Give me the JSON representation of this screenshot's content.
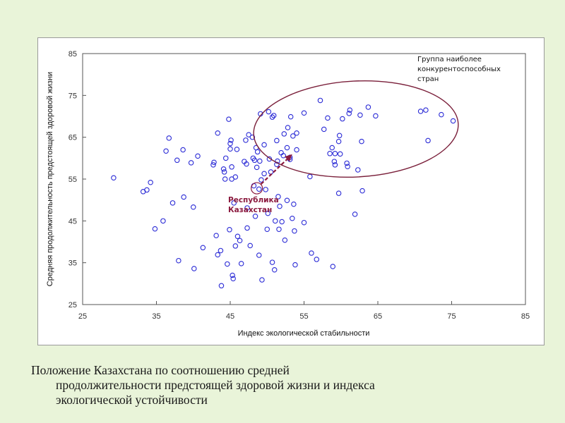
{
  "caption": {
    "line1": "Положение Казахстана по соотношению средней",
    "line2": "продолжительности предстоящей здоровой жизни и индекса",
    "line3": "экологической устойчивости"
  },
  "colors": {
    "background": "#e9f4d9",
    "point": "#2b2bd6",
    "ellipse": "#7a1f3a",
    "highlight": "#8b1a3f"
  },
  "chart_data": {
    "type": "scatter",
    "title": "",
    "xlabel": "Индекс экологической стабильности",
    "ylabel": "Средняя продолжительность предстоящей здоровой жизни",
    "xlim": [
      25,
      85
    ],
    "ylim": [
      25,
      85
    ],
    "xticks": [
      "25",
      "35",
      "45",
      "55",
      "65",
      "75",
      "85"
    ],
    "yticks": [
      "85",
      "75",
      "65",
      "55",
      "45",
      "35",
      "25"
    ],
    "grid": false,
    "annotations": {
      "group_label": [
        "Группа наиболее",
        "конкурентоспособных",
        "стран"
      ],
      "kazakhstan_label": [
        "Республика",
        "Казахстан"
      ]
    },
    "kazakhstan_point": [
      48.6,
      52.8
    ],
    "group_center": [
      60.5,
      66.5
    ],
    "points": [
      [
        29.2,
        55.3
      ],
      [
        33.2,
        52
      ],
      [
        33.7,
        52.4
      ],
      [
        34.2,
        54.2
      ],
      [
        34.8,
        43.1
      ],
      [
        35.9,
        45
      ],
      [
        36.3,
        61.7
      ],
      [
        36.7,
        64.8
      ],
      [
        37.2,
        49.3
      ],
      [
        37.8,
        59.5
      ],
      [
        38,
        35.5
      ],
      [
        38.6,
        62
      ],
      [
        38.7,
        50.7
      ],
      [
        39.7,
        58.9
      ],
      [
        40,
        48.3
      ],
      [
        40.1,
        33.6
      ],
      [
        40.6,
        60.5
      ],
      [
        41.3,
        38.6
      ],
      [
        42.7,
        58.4
      ],
      [
        42.8,
        59
      ],
      [
        43.1,
        41.5
      ],
      [
        43.3,
        66
      ],
      [
        43.3,
        36.9
      ],
      [
        43.7,
        37.9
      ],
      [
        43.8,
        29.5
      ],
      [
        44.1,
        57.4
      ],
      [
        44.2,
        56.7
      ],
      [
        44.3,
        55
      ],
      [
        44.4,
        60
      ],
      [
        44.6,
        34.7
      ],
      [
        44.8,
        69.3
      ],
      [
        44.9,
        42.9
      ],
      [
        45,
        63.5
      ],
      [
        45,
        62.2
      ],
      [
        45.1,
        64.3
      ],
      [
        45.2,
        57.9
      ],
      [
        45.2,
        55
      ],
      [
        45.3,
        32
      ],
      [
        45.4,
        31.2
      ],
      [
        45.5,
        49.3
      ],
      [
        45.7,
        39
      ],
      [
        45.7,
        55.5
      ],
      [
        45.9,
        62.1
      ],
      [
        46,
        41.3
      ],
      [
        46.3,
        40.3
      ],
      [
        46.5,
        34.8
      ],
      [
        46.9,
        59.2
      ],
      [
        47.1,
        64.3
      ],
      [
        47.2,
        58.6
      ],
      [
        47.3,
        43.3
      ],
      [
        47.3,
        48.1
      ],
      [
        47.5,
        65.6
      ],
      [
        47.7,
        39.1
      ],
      [
        48,
        65
      ],
      [
        48.1,
        60
      ],
      [
        48.2,
        53.4
      ],
      [
        48.3,
        59.5
      ],
      [
        48.4,
        46.1
      ],
      [
        48.5,
        62.5
      ],
      [
        48.6,
        57.8
      ],
      [
        48.7,
        61.5
      ],
      [
        48.9,
        52.6
      ],
      [
        48.9,
        36.8
      ],
      [
        49,
        59.3
      ],
      [
        49.1,
        70.6
      ],
      [
        49.2,
        54.8
      ],
      [
        49.3,
        30.9
      ],
      [
        49.6,
        56.3
      ],
      [
        49.6,
        63.2
      ],
      [
        49.8,
        52.5
      ],
      [
        50,
        43
      ],
      [
        50.1,
        46.8
      ],
      [
        50.2,
        71.1
      ],
      [
        50.3,
        59.8
      ],
      [
        50.5,
        56.7
      ],
      [
        50.7,
        69.8
      ],
      [
        50.7,
        35.1
      ],
      [
        50.9,
        70.2
      ],
      [
        51,
        33.3
      ],
      [
        51.1,
        45
      ],
      [
        51.3,
        58.5
      ],
      [
        51.3,
        64.2
      ],
      [
        51.4,
        59.3
      ],
      [
        51.5,
        50.8
      ],
      [
        51.6,
        43
      ],
      [
        51.7,
        48.5
      ],
      [
        51.9,
        61.3
      ],
      [
        52,
        44.8
      ],
      [
        52.2,
        60.6
      ],
      [
        52.3,
        65.8
      ],
      [
        52.4,
        40.4
      ],
      [
        52.7,
        49.9
      ],
      [
        52.7,
        62.5
      ],
      [
        52.8,
        67.3
      ],
      [
        53.1,
        59.7
      ],
      [
        53.1,
        60.2
      ],
      [
        53.2,
        69.9
      ],
      [
        53.4,
        45.6
      ],
      [
        53.5,
        65.3
      ],
      [
        53.6,
        49
      ],
      [
        53.7,
        42.6
      ],
      [
        53.8,
        34.5
      ],
      [
        54,
        62
      ],
      [
        54,
        66
      ],
      [
        55,
        44.6
      ],
      [
        55,
        70.8
      ],
      [
        55.8,
        55.6
      ],
      [
        56,
        37.3
      ],
      [
        56.7,
        35.8
      ],
      [
        57.2,
        73.8
      ],
      [
        57.7,
        66.9
      ],
      [
        58.2,
        69.6
      ],
      [
        58.5,
        61.1
      ],
      [
        58.8,
        62.5
      ],
      [
        58.9,
        34.1
      ],
      [
        59.1,
        59.2
      ],
      [
        59.2,
        58.4
      ],
      [
        59.2,
        61.1
      ],
      [
        59.7,
        64
      ],
      [
        59.7,
        51.6
      ],
      [
        59.8,
        65.4
      ],
      [
        59.9,
        61
      ],
      [
        60.2,
        69.4
      ],
      [
        60.8,
        58.8
      ],
      [
        60.9,
        58
      ],
      [
        61.1,
        70.7
      ],
      [
        61.2,
        71.5
      ],
      [
        61.9,
        46.6
      ],
      [
        62.3,
        57.2
      ],
      [
        62.6,
        70.3
      ],
      [
        62.8,
        64
      ],
      [
        62.9,
        52.2
      ],
      [
        63.7,
        72.2
      ],
      [
        64.7,
        70.1
      ],
      [
        70.8,
        71.2
      ],
      [
        71.5,
        71.5
      ],
      [
        71.8,
        64.2
      ],
      [
        73.6,
        70.4
      ],
      [
        75.2,
        68.9
      ]
    ]
  }
}
